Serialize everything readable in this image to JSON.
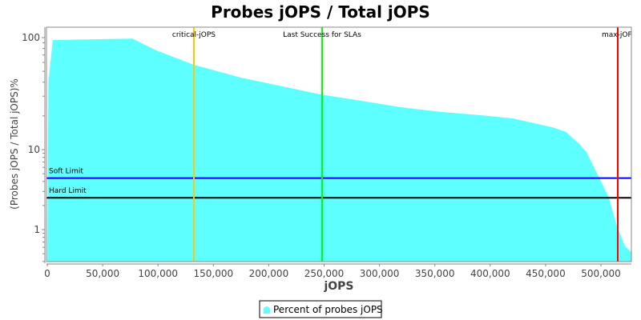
{
  "chart_data": {
    "type": "area",
    "title": "Probes jOPS / Total jOPS",
    "xlabel": "jOPS",
    "ylabel": "(Probes jOPS / Total jOPS)%",
    "xlim": [
      0,
      527500
    ],
    "ylim": [
      0.4,
      124
    ],
    "y_scale": "log",
    "grid": false,
    "legend_position": "bottom",
    "x_ticks": [
      0,
      50000,
      100000,
      150000,
      200000,
      250000,
      300000,
      350000,
      400000,
      450000,
      500000
    ],
    "x_tick_labels": [
      "0",
      "50,000",
      "100,000",
      "150,000",
      "200,000",
      "250,000",
      "300,000",
      "350,000",
      "400,000",
      "450,000",
      "500,000"
    ],
    "y_ticks": [
      1,
      10,
      100
    ],
    "y_tick_labels": [
      "1",
      "10",
      "100"
    ],
    "series": [
      {
        "name": "Percent of probes jOPS",
        "color": "#5effff",
        "x": [
          0,
          1000,
          5000,
          77000,
          98400,
          132400,
          174400,
          246700,
          282900,
          319100,
          355300,
          391500,
          420400,
          456600,
          468200,
          480500,
          487000,
          498600,
          507200,
          514500,
          521700,
          527500
        ],
        "y": [
          0.4,
          40,
          95,
          98,
          76.9,
          57.2,
          44,
          31.1,
          27.3,
          23.9,
          21.7,
          20.3,
          19,
          15.8,
          14.4,
          11.2,
          9.3,
          4.4,
          2.5,
          1.1,
          0.62,
          0.52
        ]
      }
    ],
    "vertical_markers": [
      {
        "label": "critical-jOPS",
        "x": 132400,
        "color": "#ffc800"
      },
      {
        "label": "Last Success for SLAs",
        "x": 248200,
        "color": "#00ff00"
      },
      {
        "label": "max-jOPS",
        "x": 515200,
        "color": "#ff0000"
      }
    ],
    "horizontal_markers": [
      {
        "label": "Soft Limit",
        "y": 4.4,
        "color": "#0000ff"
      },
      {
        "label": "Hard Limit",
        "y": 2.5,
        "color": "#000000"
      }
    ]
  }
}
